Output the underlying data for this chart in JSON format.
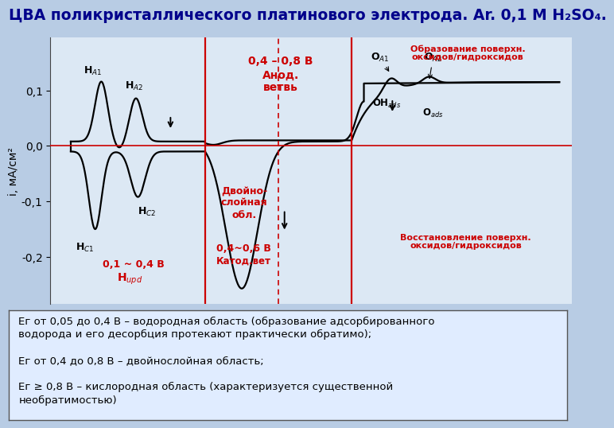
{
  "title": "ЦВА поликристаллического платинового электрода. Ar. 0,1 М H₂SO₄.",
  "ylabel": "i, мА/см²",
  "xlim": [
    0.0,
    1.28
  ],
  "ylim": [
    -0.285,
    0.195
  ],
  "yticks": [
    -0.2,
    -0.1,
    0.0,
    0.1
  ],
  "ytick_labels": [
    "-0,2",
    "-0,1",
    "0,0",
    "0,1"
  ],
  "bg_color": "#b8cce4",
  "plot_bg": "#dce8f4",
  "vline1_x": 0.38,
  "vline2_x": 0.74,
  "vline3_x": 0.56,
  "red_color": "#cc0000",
  "title_color": "#00008B",
  "title_fontsize": 14,
  "axis_fontsize": 10,
  "bottom_bg": "#b8cce4",
  "bottom_box_bg": "#c8d8f0"
}
